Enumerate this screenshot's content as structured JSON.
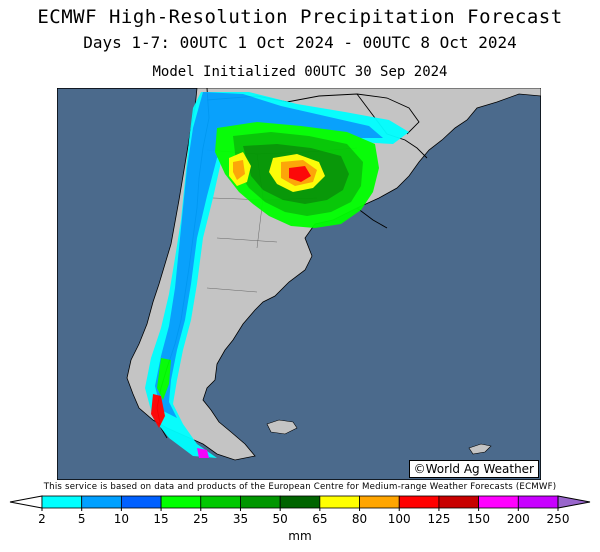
{
  "header": {
    "title": "ECMWF High-Resolution Precipitation Forecast",
    "period": "Days 1-7: 00UTC 1 Oct 2024 - 00UTC 8 Oct 2024",
    "initialized": "Model Initialized 00UTC 30 Sep 2024"
  },
  "map": {
    "credit": "World Ag Weather",
    "credit_icon": "copyright-icon",
    "region": "South America - Argentina, Chile, Uruguay",
    "ocean_color": "#4b6a8c",
    "land_color": "#c4c4c4"
  },
  "footer": {
    "notice": "This service is based on data and products of the European Centre for Medium-range Weather Forecasts (ECMWF)"
  },
  "legend": {
    "unit": "mm",
    "ticks": [
      "2",
      "5",
      "10",
      "15",
      "25",
      "35",
      "50",
      "65",
      "80",
      "100",
      "125",
      "150",
      "200",
      "250"
    ],
    "colors": [
      "#00ffff",
      "#00a0ff",
      "#0060ff",
      "#00ff00",
      "#00c800",
      "#009600",
      "#006400",
      "#ffff00",
      "#ffa500",
      "#ff0000",
      "#c80000",
      "#ff00ff",
      "#c800ff"
    ],
    "under_color": "#ffffff",
    "over_color": "#9966cc"
  }
}
